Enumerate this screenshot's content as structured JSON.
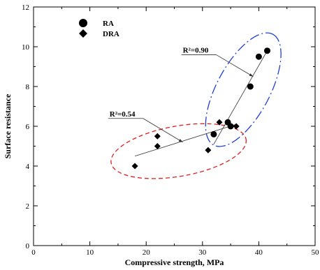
{
  "chart_data": {
    "type": "scatter",
    "xlabel": "Compressive strength, MPa",
    "ylabel": "Surface resistance",
    "xlim": [
      0,
      50
    ],
    "ylim": [
      0,
      12
    ],
    "x_ticks": [
      0,
      10,
      20,
      30,
      40,
      50
    ],
    "y_ticks": [
      0,
      2,
      4,
      6,
      8,
      10,
      12
    ],
    "grid": false,
    "legend_position": "top-left",
    "series": [
      {
        "name": "RA",
        "marker": "circle",
        "color": "#000000",
        "points": [
          {
            "x": 32.0,
            "y": 5.6
          },
          {
            "x": 34.5,
            "y": 6.2
          },
          {
            "x": 35.0,
            "y": 6.0
          },
          {
            "x": 38.5,
            "y": 8.0
          },
          {
            "x": 40.0,
            "y": 9.5
          },
          {
            "x": 41.5,
            "y": 9.8
          }
        ],
        "fit_line": [
          {
            "x": 32.0,
            "y": 5.1
          },
          {
            "x": 41.5,
            "y": 9.8
          }
        ],
        "r2_label": "R²=0.90",
        "ellipse_color": "#1f3fd6"
      },
      {
        "name": "DRA",
        "marker": "diamond",
        "color": "#000000",
        "points": [
          {
            "x": 18.0,
            "y": 4.0
          },
          {
            "x": 22.0,
            "y": 5.5
          },
          {
            "x": 22.0,
            "y": 5.0
          },
          {
            "x": 31.0,
            "y": 4.8
          },
          {
            "x": 33.0,
            "y": 6.2
          },
          {
            "x": 36.0,
            "y": 6.0
          }
        ],
        "fit_line": [
          {
            "x": 18.0,
            "y": 4.5
          },
          {
            "x": 36.0,
            "y": 6.1
          }
        ],
        "r2_label": "R²=0.54",
        "ellipse_color": "#e0201c"
      }
    ],
    "annotations": [
      {
        "text": "R²=0.90",
        "series": "RA",
        "label_at": {
          "x": 26.5,
          "y": 9.7
        },
        "arrow_to": {
          "x": 39.0,
          "y": 8.5
        }
      },
      {
        "text": "R²=0.54",
        "series": "DRA",
        "label_at": {
          "x": 13.5,
          "y": 6.5
        },
        "arrow_to": {
          "x": 26.5,
          "y": 5.2
        }
      }
    ]
  }
}
